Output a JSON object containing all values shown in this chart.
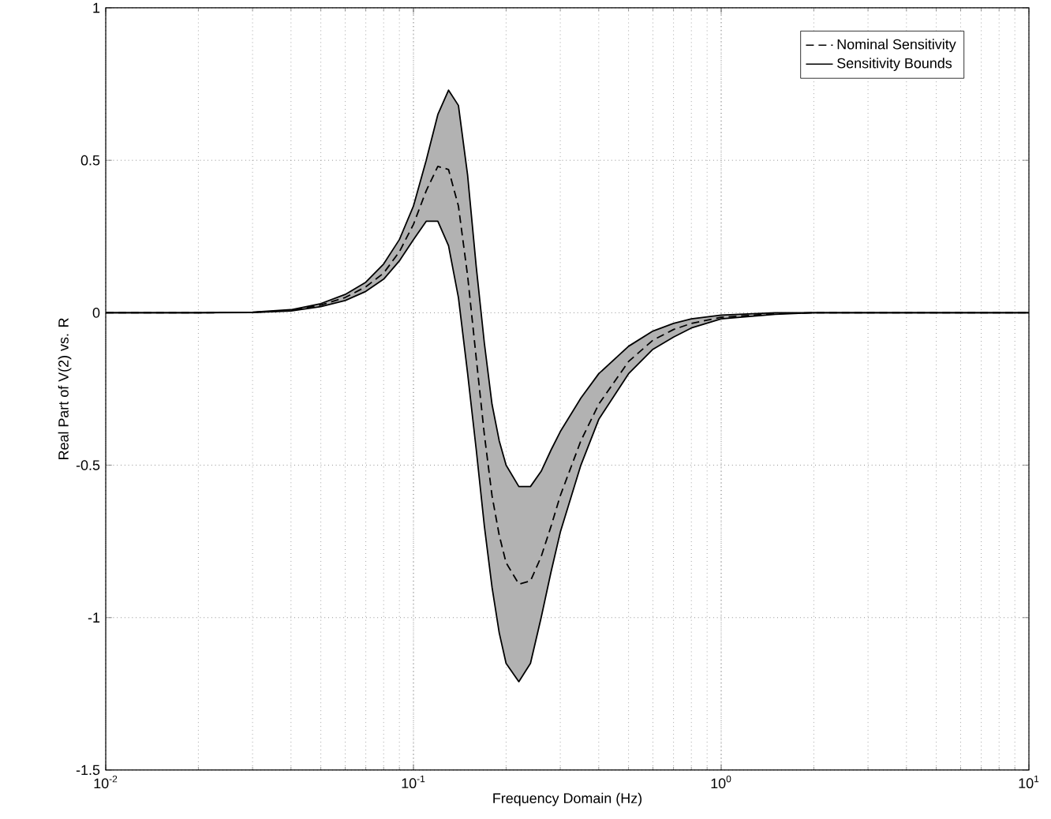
{
  "chart_data": {
    "type": "line",
    "xlabel": "Frequency Domain (Hz)",
    "ylabel": "Real Part of V(2) vs. R",
    "log": "x",
    "grid": true,
    "legend": "top right",
    "xlim": [
      0.01,
      10
    ],
    "ylim": [
      -1.5,
      1
    ],
    "xticks": [
      {
        "value": 0.01,
        "label": "10$^{-2}$"
      },
      {
        "value": 0.1,
        "label": "10$^{-1}$"
      },
      {
        "value": 1,
        "label": "10$^{0}$"
      },
      {
        "value": 10,
        "label": "10$^{1}$"
      }
    ],
    "yticks": [
      -1.5,
      -1,
      -0.5,
      0,
      0.5,
      1
    ],
    "x": [
      0.01,
      0.02,
      0.03,
      0.04,
      0.05,
      0.06,
      0.07,
      0.08,
      0.09,
      0.1,
      0.11,
      0.12,
      0.13,
      0.14,
      0.15,
      0.16,
      0.17,
      0.18,
      0.19,
      0.2,
      0.22,
      0.24,
      0.26,
      0.28,
      0.3,
      0.35,
      0.4,
      0.5,
      0.6,
      0.7,
      0.8,
      1,
      1.5,
      2,
      5,
      10
    ],
    "series": [
      {
        "name": "Nominal Sensitivity",
        "color": "#000000",
        "line_style": "dashed",
        "values": [
          0,
          0,
          0.001,
          0.008,
          0.025,
          0.05,
          0.085,
          0.13,
          0.2,
          0.29,
          0.4,
          0.48,
          0.47,
          0.35,
          0.12,
          -0.15,
          -0.4,
          -0.6,
          -0.73,
          -0.82,
          -0.89,
          -0.88,
          -0.8,
          -0.7,
          -0.6,
          -0.42,
          -0.3,
          -0.16,
          -0.09,
          -0.055,
          -0.035,
          -0.015,
          -0.003,
          0,
          0,
          0
        ],
        "upper": [
          0,
          0,
          0.002,
          0.01,
          0.03,
          0.06,
          0.1,
          0.16,
          0.24,
          0.35,
          0.5,
          0.65,
          0.73,
          0.68,
          0.45,
          0.15,
          -0.1,
          -0.3,
          -0.42,
          -0.5,
          -0.57,
          -0.57,
          -0.52,
          -0.45,
          -0.39,
          -0.28,
          -0.2,
          -0.11,
          -0.06,
          -0.035,
          -0.02,
          -0.008,
          0,
          0,
          0,
          0
        ],
        "lower": [
          0,
          0,
          0.001,
          0.006,
          0.02,
          0.04,
          0.07,
          0.11,
          0.17,
          0.24,
          0.3,
          0.3,
          0.22,
          0.05,
          -0.2,
          -0.45,
          -0.7,
          -0.9,
          -1.05,
          -1.15,
          -1.21,
          -1.15,
          -1.0,
          -0.85,
          -0.72,
          -0.5,
          -0.35,
          -0.2,
          -0.12,
          -0.08,
          -0.05,
          -0.02,
          -0.005,
          0,
          0,
          0
        ]
      },
      {
        "name": "Sensitivity Bounds",
        "color": "#000000",
        "line_style": "solid",
        "values": [
          0,
          0,
          0.002,
          0.01,
          0.03,
          0.06,
          0.1,
          0.16,
          0.24,
          0.35,
          0.5,
          0.65,
          0.73,
          0.68,
          0.45,
          0.15,
          -0.1,
          -0.3,
          -0.42,
          -0.5,
          -0.57,
          -0.57,
          -0.52,
          -0.45,
          -0.39,
          -0.28,
          -0.2,
          -0.11,
          -0.06,
          -0.035,
          -0.02,
          -0.008,
          0,
          0,
          0,
          0
        ]
      },
      {
        "color": "#000000",
        "line_style": "solid",
        "values": [
          0,
          0,
          0.001,
          0.006,
          0.02,
          0.04,
          0.07,
          0.11,
          0.17,
          0.24,
          0.3,
          0.3,
          0.22,
          0.05,
          -0.2,
          -0.45,
          -0.7,
          -0.9,
          -1.05,
          -1.15,
          -1.21,
          -1.15,
          -1.0,
          -0.85,
          -0.72,
          -0.5,
          -0.35,
          -0.2,
          -0.12,
          -0.08,
          -0.05,
          -0.02,
          -0.005,
          0,
          0,
          0
        ]
      }
    ]
  }
}
